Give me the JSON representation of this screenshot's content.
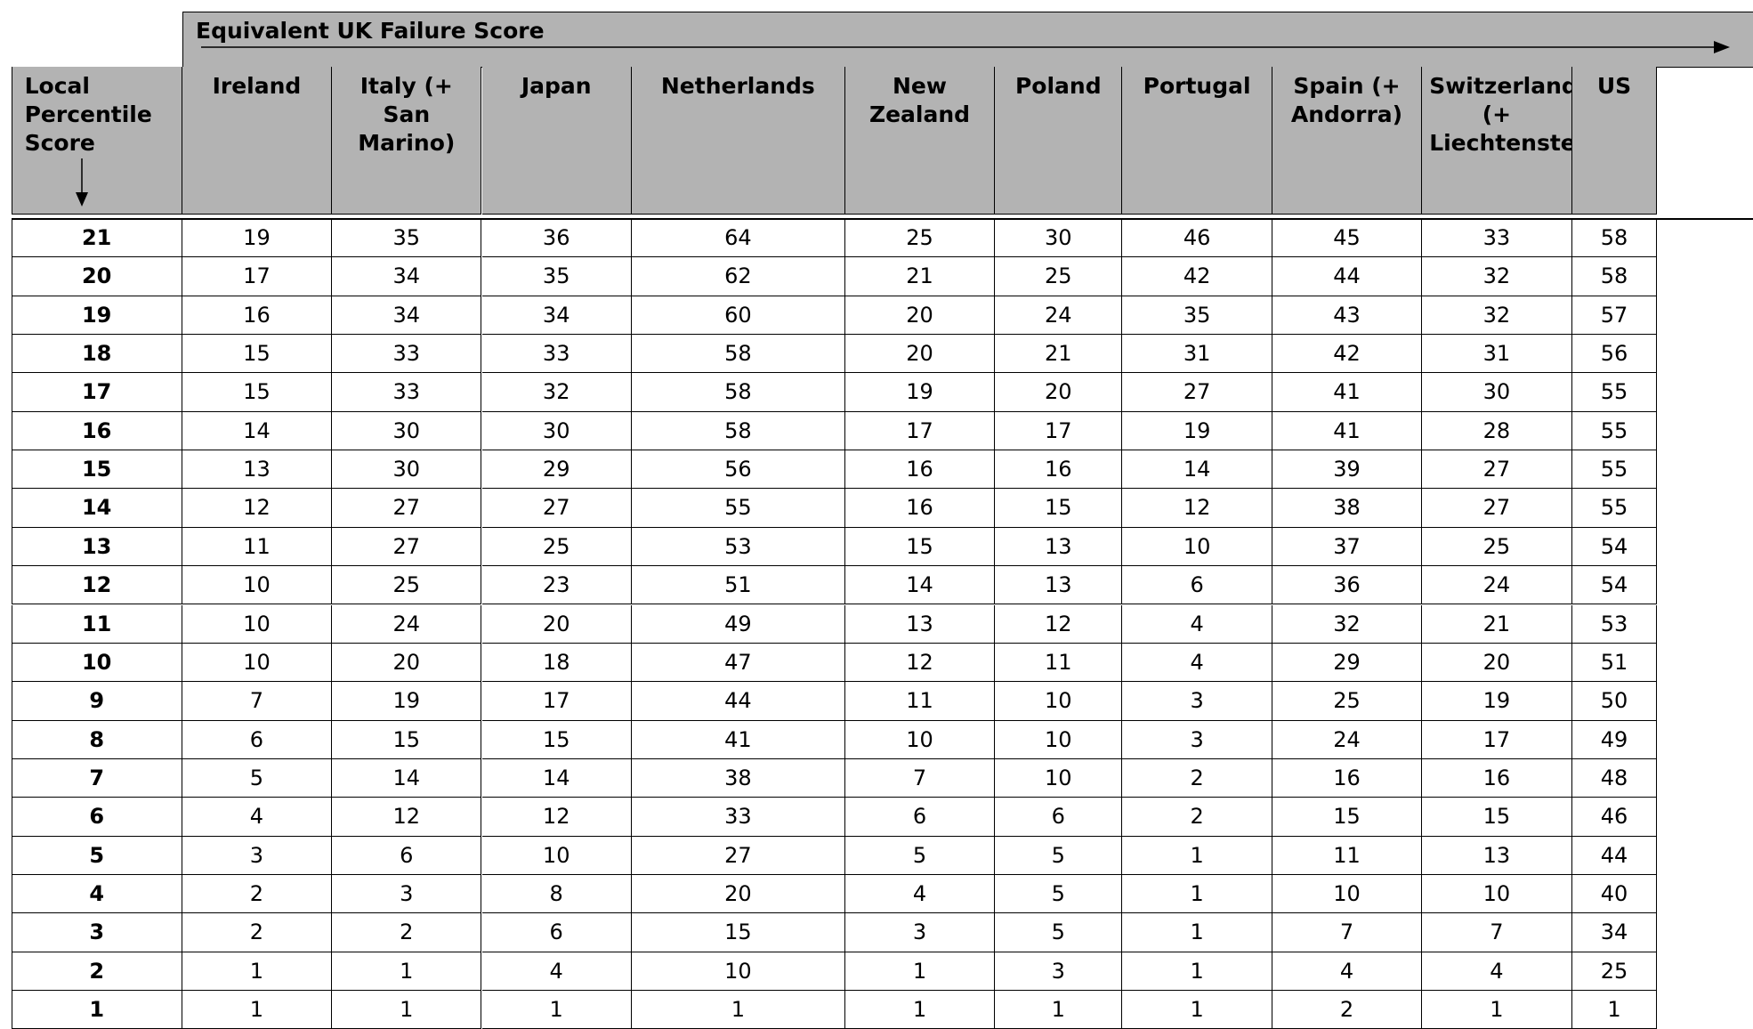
{
  "header_band": "Equivalent UK Failure Score",
  "table": {
    "columns": [
      "Local Percentile Score",
      "Ireland",
      "Italy (+ San Marino)",
      "Japan",
      "Netherlands",
      "New Zealand",
      "Poland",
      "Portugal",
      "Spain (+ Andorra)",
      "Switzerland (+ Liechtenstein)",
      "US"
    ],
    "rows": [
      [
        21,
        19,
        35,
        36,
        64,
        25,
        30,
        46,
        45,
        33,
        58
      ],
      [
        20,
        17,
        34,
        35,
        62,
        21,
        25,
        42,
        44,
        32,
        58
      ],
      [
        19,
        16,
        34,
        34,
        60,
        20,
        24,
        35,
        43,
        32,
        57
      ],
      [
        18,
        15,
        33,
        33,
        58,
        20,
        21,
        31,
        42,
        31,
        56
      ],
      [
        17,
        15,
        33,
        32,
        58,
        19,
        20,
        27,
        41,
        30,
        55
      ],
      [
        16,
        14,
        30,
        30,
        58,
        17,
        17,
        19,
        41,
        28,
        55
      ],
      [
        15,
        13,
        30,
        29,
        56,
        16,
        16,
        14,
        39,
        27,
        55
      ],
      [
        14,
        12,
        27,
        27,
        55,
        16,
        15,
        12,
        38,
        27,
        55
      ],
      [
        13,
        11,
        27,
        25,
        53,
        15,
        13,
        10,
        37,
        25,
        54
      ],
      [
        12,
        10,
        25,
        23,
        51,
        14,
        13,
        6,
        36,
        24,
        54
      ],
      [
        11,
        10,
        24,
        20,
        49,
        13,
        12,
        4,
        32,
        21,
        53
      ],
      [
        10,
        10,
        20,
        18,
        47,
        12,
        11,
        4,
        29,
        20,
        51
      ],
      [
        9,
        7,
        19,
        17,
        44,
        11,
        10,
        3,
        25,
        19,
        50
      ],
      [
        8,
        6,
        15,
        15,
        41,
        10,
        10,
        3,
        24,
        17,
        49
      ],
      [
        7,
        5,
        14,
        14,
        38,
        7,
        10,
        2,
        16,
        16,
        48
      ],
      [
        6,
        4,
        12,
        12,
        33,
        6,
        6,
        2,
        15,
        15,
        46
      ],
      [
        5,
        3,
        6,
        10,
        27,
        5,
        5,
        1,
        11,
        13,
        44
      ],
      [
        4,
        2,
        3,
        8,
        20,
        4,
        5,
        1,
        10,
        10,
        40
      ],
      [
        3,
        2,
        2,
        6,
        15,
        3,
        5,
        1,
        7,
        7,
        34
      ],
      [
        2,
        1,
        1,
        4,
        10,
        1,
        3,
        1,
        4,
        4,
        25
      ],
      [
        1,
        1,
        1,
        1,
        1,
        1,
        1,
        1,
        2,
        1,
        1
      ]
    ]
  }
}
